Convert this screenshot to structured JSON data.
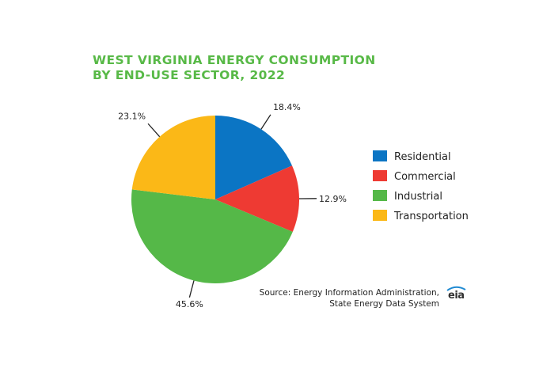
{
  "chart_data": {
    "type": "pie",
    "title_lines": [
      "WEST VIRGINIA ENERGY CONSUMPTION",
      "BY END-USE SECTOR, 2022"
    ],
    "slices": [
      {
        "name": "Residential",
        "value": 18.4,
        "label": "18.4%",
        "color": "#0b75c4"
      },
      {
        "name": "Commercial",
        "value": 12.9,
        "label": "12.9%",
        "color": "#ee3a33"
      },
      {
        "name": "Industrial",
        "value": 45.6,
        "label": "45.6%",
        "color": "#55b848"
      },
      {
        "name": "Transportation",
        "value": 23.1,
        "label": "23.1%",
        "color": "#fbb817"
      }
    ],
    "legend_placement": "right",
    "start_angle_deg": 0,
    "direction": "clockwise"
  },
  "source": {
    "line1": "Source: Energy Information Administration,",
    "line2": "State Energy Data System"
  },
  "logo": {
    "text": "eia",
    "icon": "eia-logo-icon"
  }
}
